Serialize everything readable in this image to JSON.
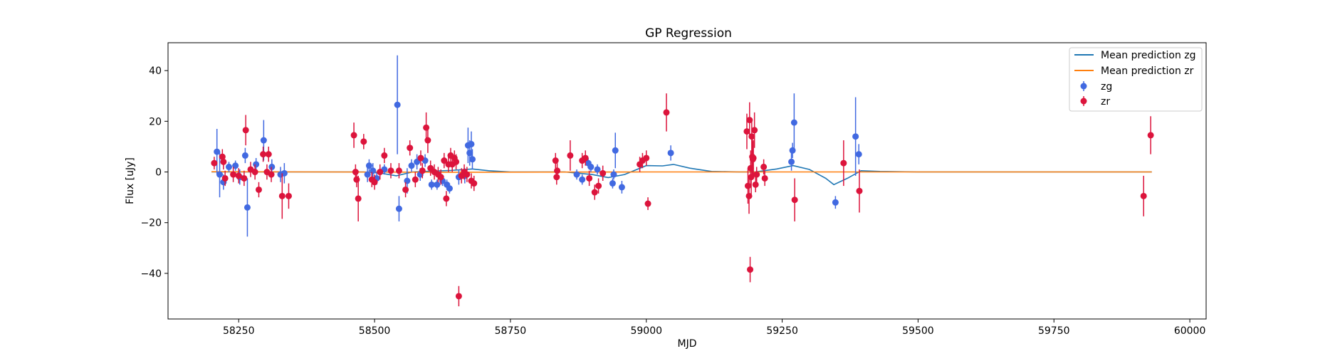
{
  "chart_data": {
    "type": "scatter",
    "title": "GP Regression",
    "xlabel": "MJD",
    "ylabel": "Flux [uJy]",
    "xlim": [
      58120,
      60030
    ],
    "ylim": [
      -58,
      51
    ],
    "xticks": [
      58250,
      58500,
      58750,
      59000,
      59250,
      59500,
      59750,
      60000
    ],
    "yticks": [
      -40,
      -20,
      0,
      20,
      40
    ],
    "legend_position": "upper right",
    "series": [
      {
        "name": "Mean prediction zg",
        "kind": "line",
        "color": "#1f77b4",
        "x": [
          58200,
          58250,
          58300,
          58350,
          58400,
          58450,
          58480,
          58510,
          58540,
          58570,
          58600,
          58640,
          58680,
          58710,
          58750,
          58800,
          58850,
          58900,
          58930,
          58960,
          59000,
          59030,
          59050,
          59080,
          59120,
          59170,
          59200,
          59240,
          59270,
          59300,
          59330,
          59345,
          59370,
          59395,
          59430,
          59500,
          59600,
          59800,
          59930
        ],
        "y": [
          0,
          0,
          0,
          0,
          0,
          0,
          0,
          -0.4,
          -1.5,
          0,
          0.3,
          0.6,
          1.2,
          0.5,
          0,
          0,
          0,
          -1,
          -2.2,
          -1,
          2.5,
          2.4,
          3.0,
          1.5,
          0.2,
          0,
          0,
          1.2,
          2.5,
          1.0,
          -2.5,
          -5.0,
          -2.5,
          0.5,
          0.2,
          0,
          0,
          0,
          0
        ]
      },
      {
        "name": "Mean prediction zr",
        "kind": "line",
        "color": "#ff7f0e",
        "x": [
          58200,
          58400,
          58650,
          59000,
          59200,
          59500,
          59930
        ],
        "y": [
          0.1,
          0,
          -0.1,
          0,
          0,
          0,
          0
        ]
      },
      {
        "name": "zg",
        "kind": "errorbar",
        "color": "#4169e1",
        "points": [
          [
            58210,
            8,
            9
          ],
          [
            58215,
            -1,
            9
          ],
          [
            58222,
            -4,
            3
          ],
          [
            58232,
            2,
            2
          ],
          [
            58244,
            2.5,
            2
          ],
          [
            58252,
            -2,
            3
          ],
          [
            58262,
            6.5,
            3
          ],
          [
            58266,
            -14,
            11.5
          ],
          [
            58282,
            3,
            2.5
          ],
          [
            58296,
            12.5,
            8
          ],
          [
            58311,
            2,
            3
          ],
          [
            58327,
            -1,
            3
          ],
          [
            58334,
            -0.5,
            4
          ],
          [
            58487,
            -1,
            3
          ],
          [
            58490,
            2.5,
            2.5
          ],
          [
            58497,
            0.5,
            3
          ],
          [
            58504,
            -2.5,
            2.5
          ],
          [
            58518,
            1,
            2
          ],
          [
            58542,
            26.5,
            19.5
          ],
          [
            58545,
            -14.5,
            5
          ],
          [
            58560,
            -3.5,
            5
          ],
          [
            58568,
            2.5,
            2.5
          ],
          [
            58578,
            4,
            3
          ],
          [
            58584,
            -1,
            2.5
          ],
          [
            58593,
            4.5,
            2.5
          ],
          [
            58605,
            -5,
            2
          ],
          [
            58615,
            -5,
            2
          ],
          [
            58625,
            -3.5,
            2
          ],
          [
            58633,
            -5,
            2
          ],
          [
            58638,
            -6.5,
            2
          ],
          [
            58655,
            -2,
            3
          ],
          [
            58666,
            -1.5,
            3
          ],
          [
            58672,
            10.5,
            7
          ],
          [
            58675,
            7.5,
            5
          ],
          [
            58678,
            11,
            5
          ],
          [
            58680,
            5,
            4
          ],
          [
            58872,
            -1,
            2
          ],
          [
            58882,
            -3,
            2
          ],
          [
            58893,
            3.5,
            2
          ],
          [
            58898,
            2,
            2
          ],
          [
            58910,
            1,
            2
          ],
          [
            58938,
            -4.5,
            2
          ],
          [
            58940,
            -1,
            2
          ],
          [
            58943,
            8.5,
            7
          ],
          [
            58955,
            -6,
            2.5
          ],
          [
            59045,
            7.5,
            3
          ],
          [
            59267,
            4,
            3.5
          ],
          [
            59269,
            8.5,
            3
          ],
          [
            59272,
            19.5,
            11.5
          ],
          [
            59348,
            -12,
            2.5
          ],
          [
            59385,
            14,
            15.5
          ],
          [
            59391,
            7,
            4
          ]
        ]
      },
      {
        "name": "zr",
        "kind": "errorbar",
        "color": "#dc143c",
        "points": [
          [
            58205,
            3.5,
            2.5
          ],
          [
            58220,
            6,
            3
          ],
          [
            58222,
            4,
            3
          ],
          [
            58225,
            -2.5,
            3
          ],
          [
            58240,
            -1,
            3
          ],
          [
            58250,
            -1.5,
            3
          ],
          [
            58260,
            -2.5,
            3
          ],
          [
            58263,
            16.5,
            6
          ],
          [
            58272,
            1,
            3
          ],
          [
            58280,
            0,
            3
          ],
          [
            58287,
            -7,
            3
          ],
          [
            58295,
            7,
            3
          ],
          [
            58302,
            0,
            3
          ],
          [
            58305,
            7,
            3
          ],
          [
            58310,
            -1,
            3
          ],
          [
            58330,
            -9.5,
            9
          ],
          [
            58342,
            -9.5,
            5
          ],
          [
            58462,
            14.5,
            5
          ],
          [
            58465,
            0,
            3
          ],
          [
            58467,
            -3,
            3
          ],
          [
            58470,
            -10.5,
            9
          ],
          [
            58480,
            12,
            3
          ],
          [
            58495,
            -3,
            3
          ],
          [
            58500,
            -4,
            3
          ],
          [
            58510,
            0,
            3
          ],
          [
            58518,
            6.5,
            3
          ],
          [
            58530,
            0.5,
            3
          ],
          [
            58545,
            0.5,
            3
          ],
          [
            58557,
            -7,
            3
          ],
          [
            58565,
            9.5,
            3
          ],
          [
            58575,
            -3,
            3
          ],
          [
            58585,
            5.5,
            3
          ],
          [
            58588,
            0.5,
            3
          ],
          [
            58595,
            17.5,
            6
          ],
          [
            58598,
            12.5,
            5
          ],
          [
            58603,
            1.5,
            3
          ],
          [
            58610,
            0,
            3
          ],
          [
            58617,
            -1,
            3
          ],
          [
            58622,
            -2,
            3
          ],
          [
            58628,
            4.5,
            3
          ],
          [
            58632,
            -10.5,
            3
          ],
          [
            58636,
            3,
            3
          ],
          [
            58640,
            6.5,
            3
          ],
          [
            58643,
            3,
            3
          ],
          [
            58647,
            5.5,
            3
          ],
          [
            58650,
            4,
            3
          ],
          [
            58655,
            -49,
            4
          ],
          [
            58660,
            -1.5,
            3
          ],
          [
            58665,
            0,
            3
          ],
          [
            58670,
            -1,
            3
          ],
          [
            58678,
            -3.5,
            3
          ],
          [
            58683,
            -4.5,
            3
          ],
          [
            58833,
            4.5,
            3
          ],
          [
            58835,
            -2,
            3
          ],
          [
            58836,
            0.5,
            3
          ],
          [
            58860,
            6.5,
            6
          ],
          [
            58882,
            4.5,
            3
          ],
          [
            58888,
            5.5,
            3
          ],
          [
            58895,
            -2.5,
            3
          ],
          [
            58905,
            -8,
            3
          ],
          [
            58912,
            -5.5,
            3
          ],
          [
            58920,
            -0.5,
            3
          ],
          [
            58988,
            3,
            3
          ],
          [
            58993,
            4.5,
            3
          ],
          [
            59000,
            5.5,
            3
          ],
          [
            59003,
            -12.5,
            2.5
          ],
          [
            59037,
            23.5,
            7.5
          ],
          [
            59185,
            16,
            7
          ],
          [
            59187,
            -5.5,
            7
          ],
          [
            59189,
            -9.5,
            7
          ],
          [
            59190,
            20.5,
            7
          ],
          [
            59191,
            -38.5,
            5
          ],
          [
            59192,
            1.5,
            7
          ],
          [
            59193,
            -2,
            7
          ],
          [
            59194,
            14,
            7
          ],
          [
            59195,
            6,
            7
          ],
          [
            59196,
            5,
            7
          ],
          [
            59197,
            5.5,
            7
          ],
          [
            59199,
            16.5,
            7
          ],
          [
            59201,
            -5,
            3
          ],
          [
            59203,
            -1,
            3
          ],
          [
            59216,
            2,
            3
          ],
          [
            59218,
            -2.5,
            3
          ],
          [
            59273,
            -11,
            8.5
          ],
          [
            59363,
            3.5,
            9
          ],
          [
            59392,
            -7.5,
            8.5
          ],
          [
            59915,
            -9.5,
            8
          ],
          [
            59928,
            14.5,
            7.5
          ]
        ]
      }
    ]
  }
}
